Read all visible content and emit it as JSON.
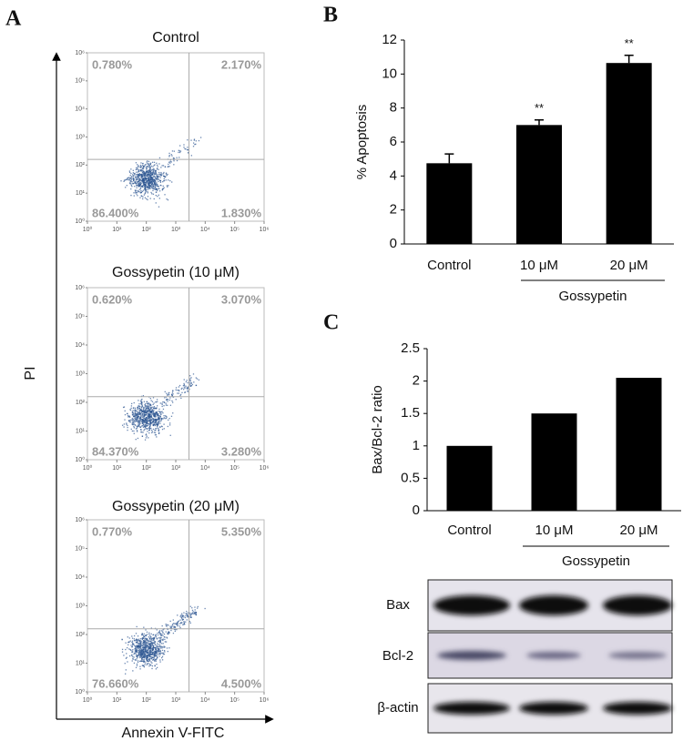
{
  "panel_labels": [
    "A",
    "B",
    "C"
  ],
  "flow_cytometry": {
    "x_label": "Annexin V-FITC",
    "y_label": "PI",
    "ticks": [
      {
        "value": 0,
        "label": "10⁰"
      },
      {
        "value": 1,
        "label": "10¹"
      },
      {
        "value": 2,
        "label": "10²"
      },
      {
        "value": 3,
        "label": "10³"
      },
      {
        "value": 4,
        "label": "10⁴"
      },
      {
        "value": 5,
        "label": "10⁵"
      },
      {
        "value": 6,
        "label": "10⁶"
      }
    ],
    "plots": [
      {
        "title": "Control",
        "values": [
          0.78,
          2.17,
          86.4,
          1.83
        ],
        "value_labels": [
          "0.780%",
          "2.170%",
          "86.400%",
          "1.830%"
        ]
      },
      {
        "title": "Gossypetin (10 μM)",
        "values": [
          0.62,
          3.07,
          84.37,
          3.28
        ],
        "value_labels": [
          "0.620%",
          "3.070%",
          "84.370%",
          "3.280%"
        ]
      },
      {
        "title": "Gossypetin (20 μM)",
        "values": [
          0.77,
          5.35,
          76.66,
          4.5
        ],
        "value_labels": [
          "0.770%",
          "5.350%",
          "76.660%",
          "4.500%"
        ]
      }
    ]
  },
  "chart_data": [
    {
      "type": "bar",
      "y_label": "% Apoptosis",
      "categories": [
        "Control",
        "10 μM",
        "20 μM"
      ],
      "group_label": "Gossypetin",
      "values": [
        4.75,
        7.0,
        10.65
      ],
      "errors": [
        0.55,
        0.3,
        0.45
      ],
      "annotations": [
        null,
        "**",
        "**"
      ],
      "color": "#000000",
      "ylim": [
        0,
        12
      ],
      "yticks": [
        0,
        2,
        4,
        6,
        8,
        10,
        12
      ]
    },
    {
      "type": "bar",
      "y_label": "Bax/Bcl-2 ratio",
      "categories": [
        "Control",
        "10 μM",
        "20 μM"
      ],
      "group_label": "Gossypetin",
      "values": [
        1,
        1.5,
        2.05
      ],
      "color": "#000000",
      "ylim": [
        0,
        2.5
      ],
      "yticks": [
        0,
        0.5,
        1,
        1.5,
        2,
        2.5
      ]
    }
  ],
  "blot": {
    "labels": [
      "Bax",
      "Bcl-2",
      "β-actin"
    ]
  }
}
